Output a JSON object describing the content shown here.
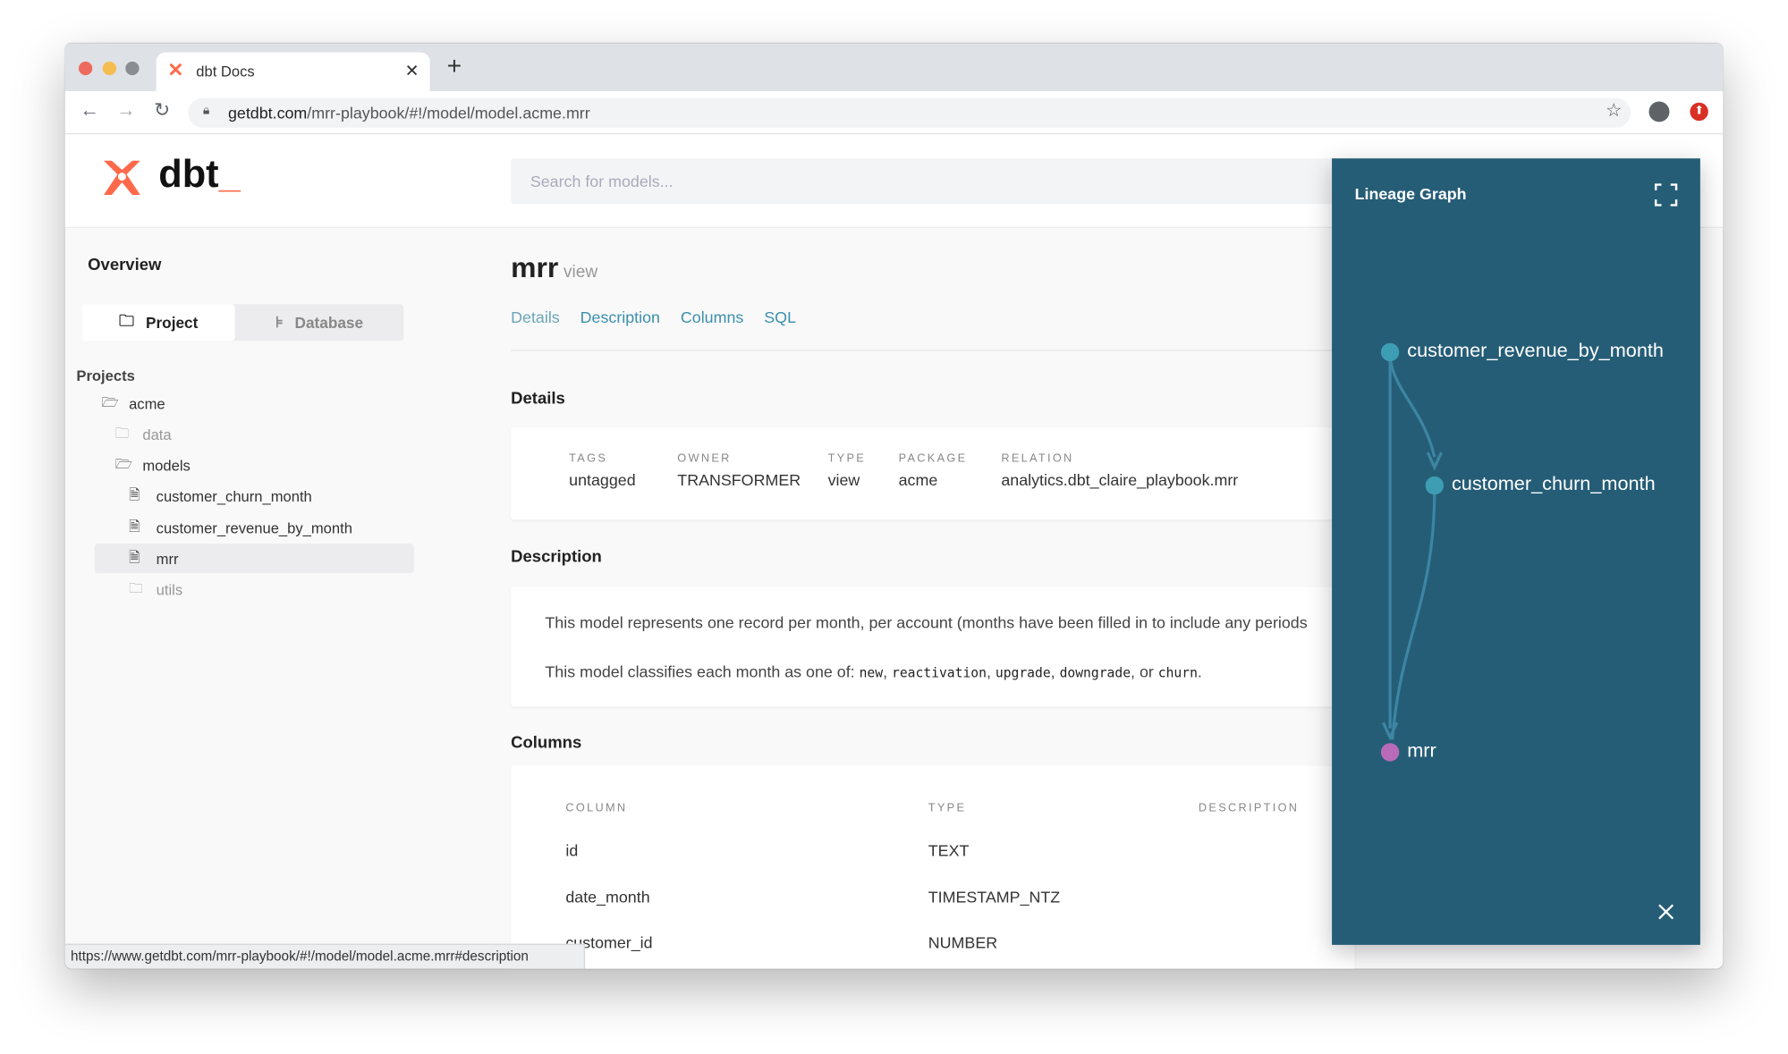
{
  "browser": {
    "tab_title": "dbt Docs",
    "url_domain": "getdbt.com",
    "url_path": "/mrr-playbook/#!/model/model.acme.mrr",
    "status_url": "https://www.getdbt.com/mrr-playbook/#!/model/model.acme.mrr#description"
  },
  "header": {
    "logo_text": "dbt",
    "search_placeholder": "Search for models..."
  },
  "sidebar": {
    "overview": "Overview",
    "toggle": {
      "project": "Project",
      "database": "Database"
    },
    "projects_label": "Projects",
    "tree": [
      {
        "label": "acme",
        "kind": "folder-open",
        "level": 0
      },
      {
        "label": "data",
        "kind": "folder",
        "level": 1
      },
      {
        "label": "models",
        "kind": "folder-open",
        "level": 1
      },
      {
        "label": "customer_churn_month",
        "kind": "file",
        "level": 2
      },
      {
        "label": "customer_revenue_by_month",
        "kind": "file",
        "level": 2
      },
      {
        "label": "mrr",
        "kind": "file",
        "level": 2,
        "selected": true
      },
      {
        "label": "utils",
        "kind": "folder",
        "level": 2
      }
    ]
  },
  "model": {
    "name": "mrr",
    "materialization": "view",
    "tabs": [
      "Details",
      "Description",
      "Columns",
      "SQL"
    ],
    "details_heading": "Details",
    "details": [
      {
        "label": "TAGS",
        "value": "untagged"
      },
      {
        "label": "OWNER",
        "value": "TRANSFORMER"
      },
      {
        "label": "TYPE",
        "value": "view"
      },
      {
        "label": "PACKAGE",
        "value": "acme"
      },
      {
        "label": "RELATION",
        "value": "analytics.dbt_claire_playbook.mrr"
      }
    ],
    "description_heading": "Description",
    "description_line1": "This model represents one record per month, per account (months have been filled in to include any periods",
    "description_line2_prefix": "This model classifies each month as one of: ",
    "description_codes": [
      "new",
      "reactivation",
      "upgrade",
      "downgrade",
      "churn"
    ],
    "description_or": "or",
    "columns_heading": "Columns",
    "columns_headers": [
      "COLUMN",
      "TYPE",
      "DESCRIPTION"
    ],
    "columns": [
      {
        "name": "id",
        "type": "TEXT"
      },
      {
        "name": "date_month",
        "type": "TIMESTAMP_NTZ"
      },
      {
        "name": "customer_id",
        "type": "NUMBER"
      }
    ]
  },
  "lineage": {
    "title": "Lineage Graph",
    "nodes": [
      {
        "label": "customer_revenue_by_month",
        "color": "#3d9db3"
      },
      {
        "label": "customer_churn_month",
        "color": "#3d9db3"
      },
      {
        "label": "mrr",
        "color": "#b86bb8"
      }
    ],
    "background": "#255d77"
  }
}
